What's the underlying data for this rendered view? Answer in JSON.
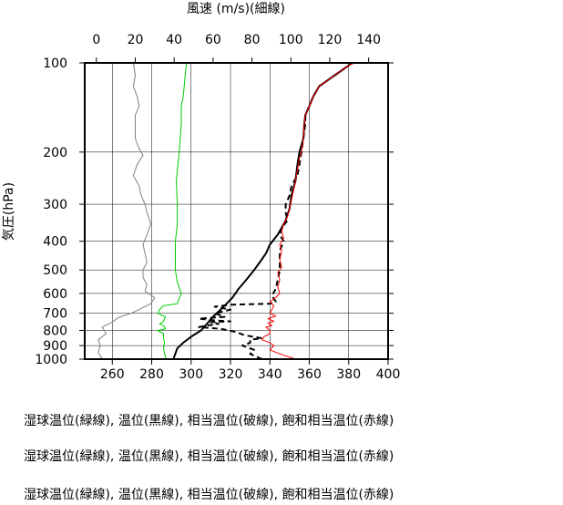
{
  "chart_data": {
    "type": "line",
    "title": "",
    "top_axis": {
      "label": "風速 (m/s)(細線)",
      "range": [
        -6,
        150
      ],
      "ticks": [
        0,
        20,
        40,
        60,
        80,
        100,
        120,
        140
      ]
    },
    "bottom_axis": {
      "label": "",
      "range": [
        246,
        400
      ],
      "ticks": [
        260,
        280,
        300,
        320,
        340,
        360,
        380,
        400
      ]
    },
    "y_axis": {
      "label": "気圧(hPa)",
      "scale": "log",
      "reversed": true,
      "range": [
        1000,
        100
      ],
      "ticks": [
        100,
        200,
        300,
        400,
        500,
        600,
        700,
        800,
        900,
        1000
      ]
    },
    "grid": true,
    "series": [
      {
        "color": "#808080",
        "axis": "top",
        "points": [
          [
            3,
            1000
          ],
          [
            1,
            950
          ],
          [
            2,
            900
          ],
          [
            1,
            860
          ],
          [
            5,
            820
          ],
          [
            3,
            780
          ],
          [
            8,
            750
          ],
          [
            12,
            720
          ],
          [
            18,
            700
          ],
          [
            22,
            680
          ],
          [
            28,
            650
          ],
          [
            30,
            620
          ],
          [
            25,
            590
          ],
          [
            26,
            560
          ],
          [
            24,
            530
          ],
          [
            24,
            500
          ],
          [
            26,
            470
          ],
          [
            25,
            440
          ],
          [
            24,
            410
          ],
          [
            26,
            380
          ],
          [
            28,
            350
          ],
          [
            26,
            320
          ],
          [
            25,
            300
          ],
          [
            23,
            280
          ],
          [
            22,
            260
          ],
          [
            19,
            240
          ],
          [
            21,
            220
          ],
          [
            24,
            205
          ],
          [
            22,
            195
          ],
          [
            20,
            180
          ],
          [
            20,
            160
          ],
          [
            20,
            150
          ],
          [
            22,
            140
          ],
          [
            21,
            130
          ],
          [
            19,
            120
          ],
          [
            20,
            110
          ],
          [
            19,
            100
          ]
        ]
      },
      {
        "color": "#00cc00",
        "axis": "bottom",
        "points": [
          [
            287.5,
            1000
          ],
          [
            286.5,
            960
          ],
          [
            286,
            920
          ],
          [
            286.5,
            880
          ],
          [
            286,
            850
          ],
          [
            286,
            820
          ],
          [
            283,
            800
          ],
          [
            287,
            790
          ],
          [
            286,
            770
          ],
          [
            284,
            760
          ],
          [
            286,
            745
          ],
          [
            287,
            720
          ],
          [
            283,
            700
          ],
          [
            284,
            680
          ],
          [
            286,
            660
          ],
          [
            293,
            650
          ],
          [
            295,
            600
          ],
          [
            293,
            550
          ],
          [
            292,
            500
          ],
          [
            292,
            450
          ],
          [
            292,
            400
          ],
          [
            293,
            350
          ],
          [
            293,
            300
          ],
          [
            292.5,
            250
          ],
          [
            294,
            200
          ],
          [
            294.5,
            180
          ],
          [
            295,
            160
          ],
          [
            295,
            140
          ],
          [
            296,
            130
          ],
          [
            296.5,
            120
          ],
          [
            297,
            110
          ],
          [
            297.5,
            102
          ],
          [
            298,
            100
          ]
        ]
      },
      {
        "color": "#000000",
        "axis": "bottom",
        "points": [
          [
            291,
            1000
          ],
          [
            293,
            920
          ],
          [
            296,
            880
          ],
          [
            300,
            840
          ],
          [
            305,
            800
          ],
          [
            308,
            760
          ],
          [
            311,
            720
          ],
          [
            315,
            680
          ],
          [
            318,
            650
          ],
          [
            321,
            620
          ],
          [
            324,
            580
          ],
          [
            328,
            540
          ],
          [
            332,
            500
          ],
          [
            335,
            470
          ],
          [
            338,
            440
          ],
          [
            340,
            410
          ],
          [
            344,
            380
          ],
          [
            346,
            360
          ],
          [
            348,
            340
          ],
          [
            350,
            310
          ],
          [
            351,
            280
          ],
          [
            353,
            250
          ],
          [
            354,
            220
          ],
          [
            355,
            200
          ],
          [
            357,
            180
          ],
          [
            357.5,
            160
          ],
          [
            358,
            150
          ],
          [
            360,
            140
          ],
          [
            362,
            130
          ],
          [
            365,
            120
          ],
          [
            373,
            110
          ],
          [
            380,
            102
          ],
          [
            381,
            100
          ]
        ]
      },
      {
        "color": "#000000",
        "axis": "bottom",
        "dashed": true,
        "points": [
          [
            336,
            1000
          ],
          [
            330,
            960
          ],
          [
            332,
            930
          ],
          [
            326,
            900
          ],
          [
            330,
            880
          ],
          [
            330,
            860
          ],
          [
            336,
            850
          ],
          [
            327,
            830
          ],
          [
            323,
            810
          ],
          [
            315,
            790
          ],
          [
            304,
            780
          ],
          [
            308,
            770
          ],
          [
            314,
            760
          ],
          [
            310,
            750
          ],
          [
            320,
            745
          ],
          [
            312,
            740
          ],
          [
            304,
            730
          ],
          [
            317,
            720
          ],
          [
            312,
            700
          ],
          [
            320,
            680
          ],
          [
            312,
            665
          ],
          [
            320,
            655
          ],
          [
            340,
            650
          ],
          [
            343,
            640
          ],
          [
            341,
            610
          ],
          [
            343,
            580
          ],
          [
            344,
            540
          ],
          [
            345,
            500
          ],
          [
            345,
            460
          ],
          [
            345,
            430
          ],
          [
            347,
            400
          ],
          [
            345,
            380
          ],
          [
            346,
            360
          ],
          [
            349,
            340
          ],
          [
            348,
            320
          ],
          [
            348,
            300
          ],
          [
            350,
            280
          ],
          [
            351,
            260
          ],
          [
            354,
            240
          ],
          [
            355,
            220
          ],
          [
            356,
            200
          ],
          [
            357,
            180
          ],
          [
            358,
            160
          ],
          [
            358,
            150
          ],
          [
            360,
            140
          ],
          [
            362,
            130
          ],
          [
            365,
            120
          ],
          [
            373,
            110
          ],
          [
            380,
            102
          ],
          [
            381,
            100
          ]
        ]
      },
      {
        "color": "#ff0000",
        "axis": "bottom",
        "points": [
          [
            353,
            1000
          ],
          [
            345,
            960
          ],
          [
            340,
            930
          ],
          [
            342,
            900
          ],
          [
            340,
            880
          ],
          [
            336,
            860
          ],
          [
            337,
            840
          ],
          [
            340,
            820
          ],
          [
            340,
            800
          ],
          [
            338,
            780
          ],
          [
            341,
            770
          ],
          [
            339,
            755
          ],
          [
            342,
            745
          ],
          [
            339,
            730
          ],
          [
            343,
            715
          ],
          [
            340,
            700
          ],
          [
            341,
            680
          ],
          [
            342,
            660
          ],
          [
            340,
            640
          ],
          [
            343,
            620
          ],
          [
            345,
            600
          ],
          [
            344,
            570
          ],
          [
            345,
            540
          ],
          [
            344,
            510
          ],
          [
            346,
            490
          ],
          [
            345,
            460
          ],
          [
            346,
            430
          ],
          [
            345,
            410
          ],
          [
            347,
            390
          ],
          [
            346,
            370
          ],
          [
            347,
            350
          ],
          [
            349,
            330
          ],
          [
            350,
            310
          ],
          [
            351,
            290
          ],
          [
            352,
            270
          ],
          [
            353,
            250
          ],
          [
            354,
            230
          ],
          [
            355,
            210
          ],
          [
            356,
            200
          ],
          [
            357,
            180
          ],
          [
            357.5,
            160
          ],
          [
            358,
            150
          ],
          [
            360,
            140
          ],
          [
            362,
            130
          ],
          [
            365,
            120
          ],
          [
            373,
            110
          ],
          [
            380,
            102
          ],
          [
            383,
            100
          ]
        ]
      }
    ]
  },
  "captions": [
    "湿球温位(緑線), 温位(黒線), 相当温位(破線), 飽和相当温位(赤線)",
    "湿球温位(緑線), 温位(黒線), 相当温位(破線), 飽和相当温位(赤線)",
    "湿球温位(緑線), 温位(黒線), 相当温位(破線), 飽和相当温位(赤線)"
  ]
}
